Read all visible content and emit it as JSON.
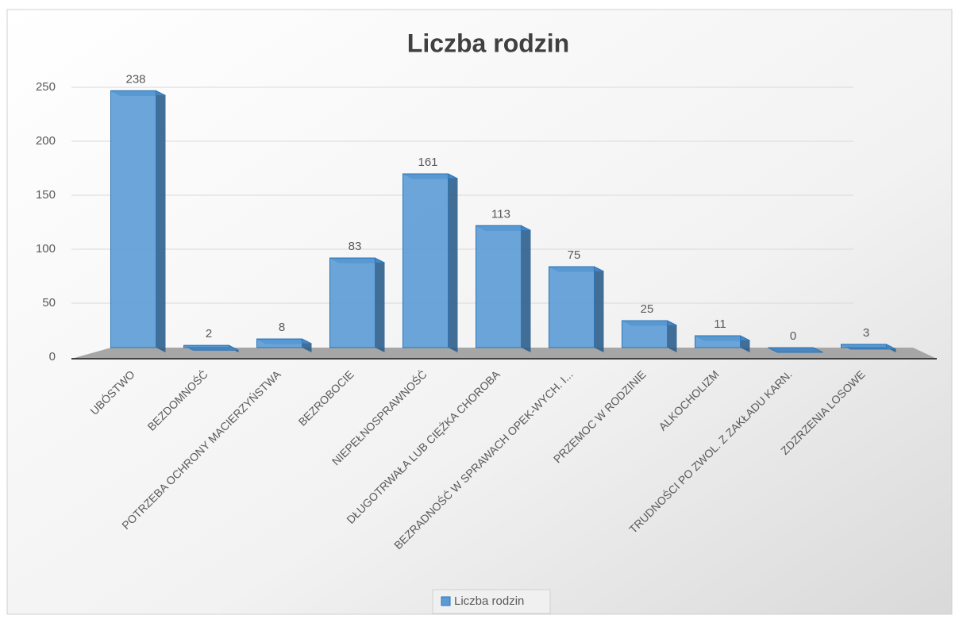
{
  "chart_data": {
    "type": "bar",
    "title": "Liczba rodzin",
    "categories": [
      "UBÓSTWO",
      "BEZDOMNOŚĆ",
      "POTRZEBA OCHRONY MACIERZYŃSTWA",
      "BEZROBOCIE",
      "NIEPEŁNOSPRAWNOŚĆ",
      "DŁUGOTRWAŁA LUB CIĘŻKA CHOROBA",
      "BEZRADNOŚĆ W SPRAWACH OPEK-WYCH. I...",
      "PRZEMOC W RODZINIE",
      "ALKOCHOLIZM",
      "TRUDNOŚCI PO ZWOL. Z ZAKŁADU KARN.",
      "ZDZRZENIA LOSOWE"
    ],
    "series": [
      {
        "name": "Liczba rodzin",
        "color": "#5b9bd5",
        "values": [
          238,
          2,
          8,
          83,
          161,
          113,
          75,
          25,
          11,
          0,
          3
        ]
      }
    ],
    "ylim": [
      0,
      250
    ],
    "yticks": [
      0,
      50,
      100,
      150,
      200,
      250
    ],
    "grid": true,
    "legend": "bottom"
  }
}
